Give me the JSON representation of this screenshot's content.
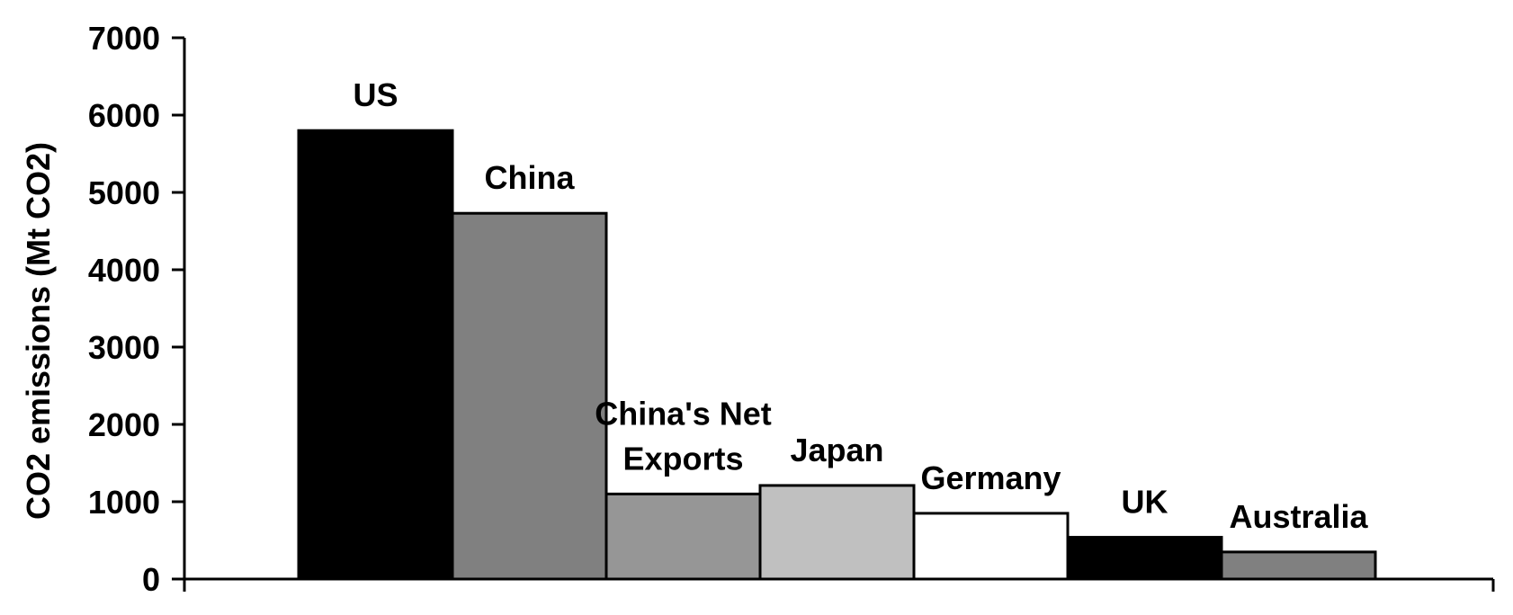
{
  "chart_data": {
    "type": "bar",
    "title": "",
    "xlabel": "",
    "ylabel": "CO2 emissions (Mt CO2)",
    "ylim": [
      0,
      7000
    ],
    "yticks": [
      0,
      1000,
      2000,
      3000,
      4000,
      5000,
      6000,
      7000
    ],
    "grid": false,
    "legend": "none",
    "categories": [
      "US",
      "China",
      "China's Net Exports",
      "Japan",
      "Germany",
      "UK",
      "Australia"
    ],
    "label_lines": [
      [
        "US"
      ],
      [
        "China"
      ],
      [
        "China's Net",
        "Exports"
      ],
      [
        "Japan"
      ],
      [
        "Germany"
      ],
      [
        "UK"
      ],
      [
        "Australia"
      ]
    ],
    "values": [
      5800,
      4730,
      1100,
      1210,
      850,
      540,
      350
    ],
    "colors": [
      "#000000",
      "#808080",
      "#969696",
      "#c0c0c0",
      "#ffffff",
      "#000000",
      "#808080"
    ]
  }
}
